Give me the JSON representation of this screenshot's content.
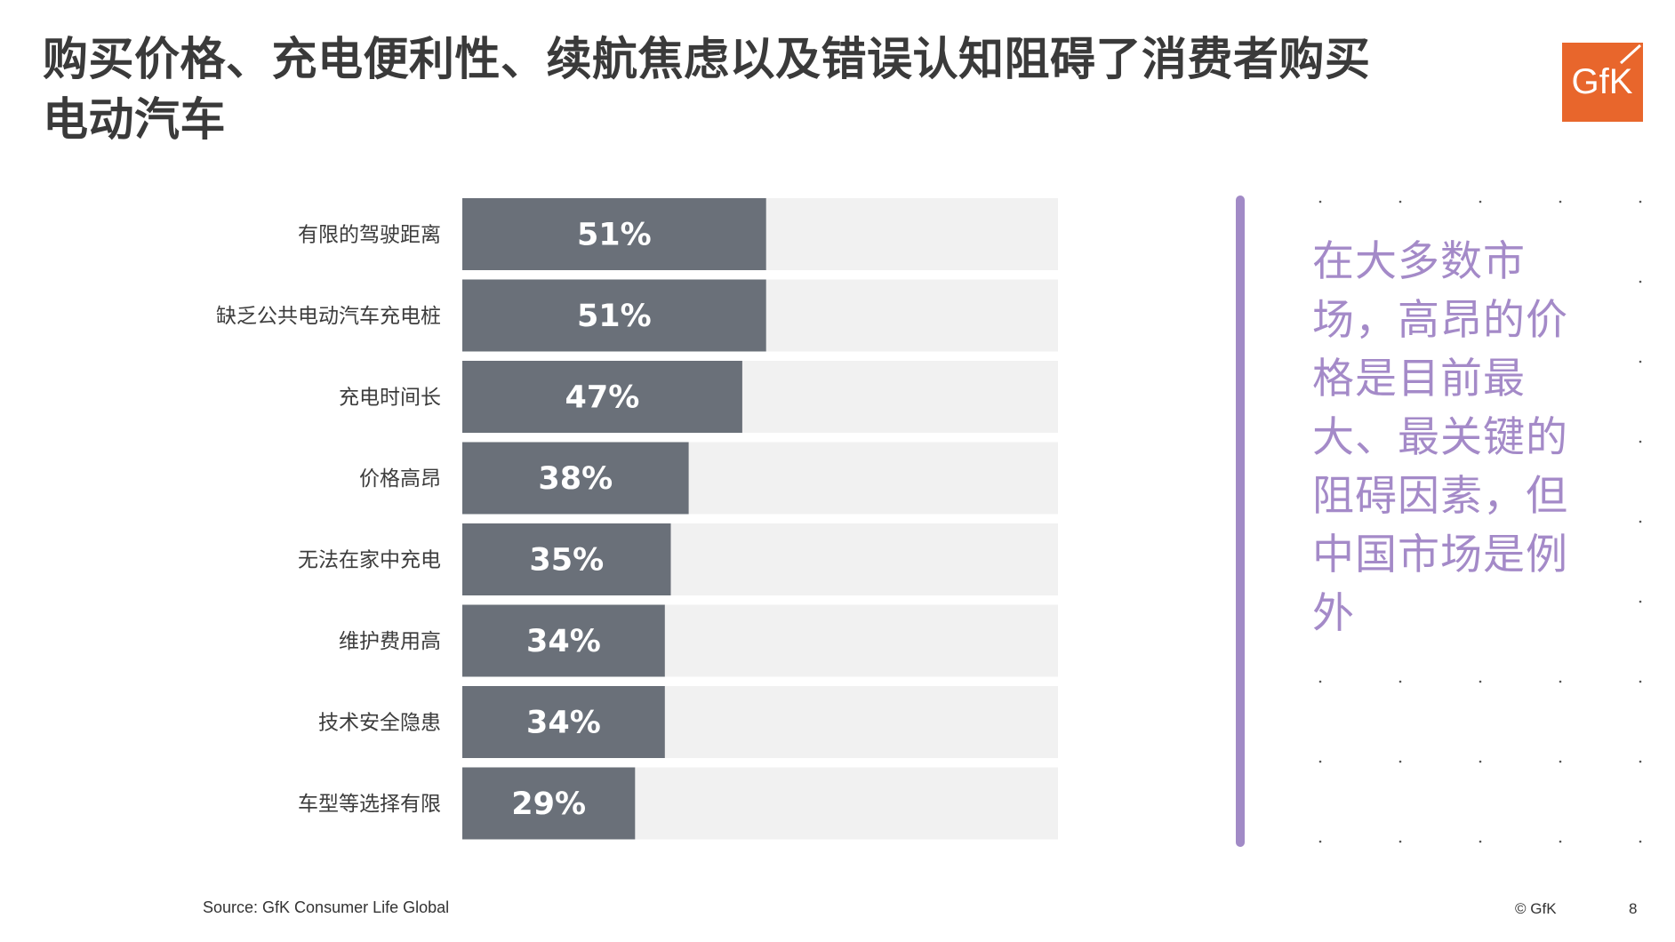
{
  "slide": {
    "title": "购买价格、充电便利性、续航焦虑以及错误认知阻碍了消费者购买电动汽车",
    "source": "Source: GfK Consumer Life Global",
    "copyright": "© GfK",
    "page_number": "8",
    "logo_text": "GfK",
    "quote": "在大多数市场，高昂的价格是目前最大、最关键的阻碍因素，但中国市场是例外"
  },
  "colors": {
    "bar": "#6a7079",
    "track": "#f1f1f1",
    "accent": "#a48ac8",
    "logo": "#e8662c"
  },
  "chart_data": {
    "type": "bar",
    "orientation": "horizontal",
    "title": "",
    "xlabel": "",
    "ylabel": "",
    "xlim": [
      0,
      100
    ],
    "grid": false,
    "categories": [
      "有限的驾驶距离",
      "缺乏公共电动汽车充电桩",
      "充电时间长",
      "价格高昂",
      "无法在家中充电",
      "维护费用高",
      "技术安全隐患",
      "车型等选择有限"
    ],
    "values": [
      51,
      51,
      47,
      38,
      35,
      34,
      34,
      29
    ],
    "value_labels": [
      "51%",
      "51%",
      "47%",
      "38%",
      "35%",
      "34%",
      "34%",
      "29%"
    ]
  }
}
